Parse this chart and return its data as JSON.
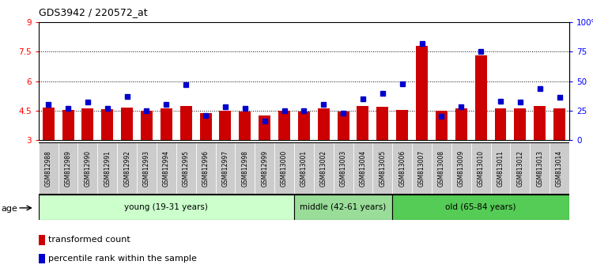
{
  "title": "GDS3942 / 220572_at",
  "samples": [
    "GSM812988",
    "GSM812989",
    "GSM812990",
    "GSM812991",
    "GSM812992",
    "GSM812993",
    "GSM812994",
    "GSM812995",
    "GSM812996",
    "GSM812997",
    "GSM812998",
    "GSM812999",
    "GSM813000",
    "GSM813001",
    "GSM813002",
    "GSM813003",
    "GSM813004",
    "GSM813005",
    "GSM813006",
    "GSM813007",
    "GSM813008",
    "GSM813009",
    "GSM813010",
    "GSM813011",
    "GSM813012",
    "GSM813013",
    "GSM813014"
  ],
  "bar_values": [
    4.65,
    4.55,
    4.62,
    4.58,
    4.65,
    4.5,
    4.6,
    4.74,
    4.38,
    4.5,
    4.47,
    4.27,
    4.5,
    4.45,
    4.62,
    4.47,
    4.75,
    4.68,
    4.55,
    7.8,
    4.48,
    4.6,
    7.3,
    4.62,
    4.62,
    4.72,
    4.62
  ],
  "percentile_values": [
    30,
    27,
    32,
    27,
    37,
    25,
    30,
    47,
    21,
    28,
    27,
    16,
    25,
    25,
    30,
    23,
    35,
    40,
    48,
    82,
    20,
    28,
    75,
    33,
    32,
    44,
    36
  ],
  "groups": [
    {
      "label": "young (19-31 years)",
      "start": 0,
      "end": 13,
      "color": "#ccffcc"
    },
    {
      "label": "middle (42-61 years)",
      "start": 13,
      "end": 18,
      "color": "#99dd99"
    },
    {
      "label": "old (65-84 years)",
      "start": 18,
      "end": 27,
      "color": "#55cc55"
    }
  ],
  "bar_color": "#cc0000",
  "dot_color": "#0000cc",
  "ylim_left": [
    3,
    9
  ],
  "ylim_right": [
    0,
    100
  ],
  "yticks_left": [
    3,
    4.5,
    6,
    7.5,
    9
  ],
  "yticks_right": [
    0,
    25,
    50,
    75,
    100
  ],
  "ytick_labels_left": [
    "3",
    "4.5",
    "6",
    "7.5",
    "9"
  ],
  "ytick_labels_right": [
    "0",
    "25",
    "50",
    "75",
    "100%"
  ],
  "grid_values": [
    4.5,
    6.0,
    7.5
  ],
  "plot_bg": "#ffffff",
  "fig_bg": "#ffffff",
  "xtick_bg": "#cccccc",
  "legend_items": [
    {
      "color": "#cc0000",
      "label": "transformed count"
    },
    {
      "color": "#0000cc",
      "label": "percentile rank within the sample"
    }
  ],
  "age_label": "age"
}
